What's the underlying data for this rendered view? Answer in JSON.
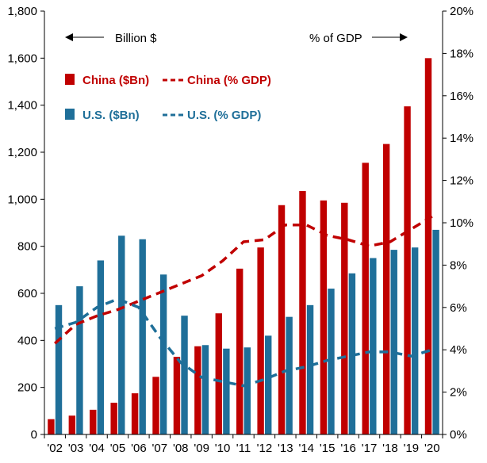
{
  "chart_data": {
    "type": "bar",
    "categories": [
      "'02",
      "'03",
      "'04",
      "'05",
      "'06",
      "'07",
      "'08",
      "'09",
      "'10",
      "'11",
      "'12",
      "'13",
      "'14",
      "'15",
      "'16",
      "'17",
      "'18",
      "'19",
      "'20"
    ],
    "ylim_left": [
      0,
      1800
    ],
    "ylim_right": [
      0,
      20
    ],
    "y_ticks_left": [
      "0",
      "200",
      "400",
      "600",
      "800",
      "1,000",
      "1,200",
      "1,400",
      "1,600",
      "1,800"
    ],
    "y_ticks_right": [
      "0%",
      "2%",
      "4%",
      "6%",
      "8%",
      "10%",
      "12%",
      "14%",
      "16%",
      "18%",
      "20%"
    ],
    "annotations": {
      "left_axis": "Billion $",
      "right_axis": "% of GDP"
    },
    "bars": [
      {
        "name": "China ($Bn)",
        "color": "#c00000",
        "values": [
          65,
          80,
          105,
          135,
          175,
          245,
          330,
          375,
          515,
          705,
          795,
          975,
          1035,
          995,
          985,
          1155,
          1235,
          1395,
          1600
        ]
      },
      {
        "name": "U.S. ($Bn)",
        "color": "#1f6f99",
        "values": [
          550,
          630,
          740,
          845,
          830,
          680,
          505,
          380,
          365,
          370,
          420,
          500,
          550,
          620,
          685,
          750,
          785,
          795,
          870
        ]
      }
    ],
    "lines": [
      {
        "name": "China (% GDP)",
        "color": "#c00000",
        "style": "dashed",
        "axis": "right",
        "values": [
          4.3,
          5.2,
          5.6,
          5.9,
          6.3,
          6.7,
          7.1,
          7.5,
          8.2,
          9.1,
          9.2,
          9.9,
          9.9,
          9.4,
          9.2,
          8.9,
          9.1,
          9.7,
          10.3
        ]
      },
      {
        "name": "U.S. (% GDP)",
        "color": "#1f6f99",
        "style": "dashed",
        "axis": "right",
        "values": [
          5.0,
          5.3,
          6.0,
          6.4,
          6.0,
          4.6,
          3.4,
          2.7,
          2.5,
          2.3,
          2.6,
          3.0,
          3.2,
          3.5,
          3.7,
          3.9,
          3.9,
          3.7,
          4.0
        ]
      }
    ],
    "legend": [
      {
        "label": "China ($Bn)",
        "color": "#c00000",
        "kind": "bar"
      },
      {
        "label": "China (% GDP)",
        "color": "#c00000",
        "kind": "dash"
      },
      {
        "label": "U.S. ($Bn)",
        "color": "#1f6f99",
        "kind": "bar"
      },
      {
        "label": "U.S. (% GDP)",
        "color": "#1f6f99",
        "kind": "dash"
      }
    ]
  }
}
